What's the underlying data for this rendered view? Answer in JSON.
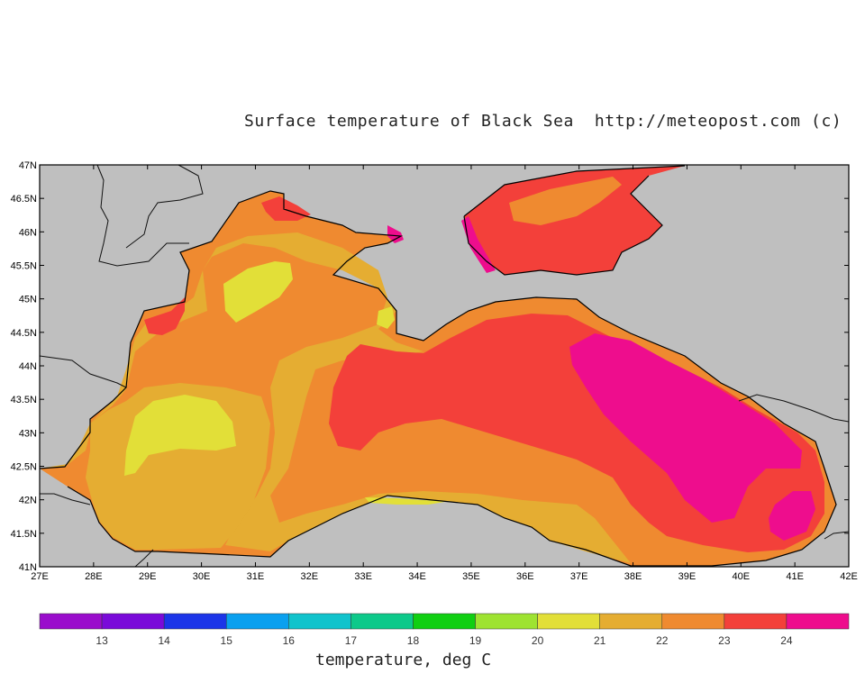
{
  "title": "Surface temperature of Black Sea  http://meteopost.com (c)",
  "colors": {
    "land": "#bfbfbf",
    "c20": "#e2df38",
    "c21": "#e5ad32",
    "c22": "#ef8a30",
    "c23": "#f3403a",
    "c24": "#ee0d8d"
  },
  "axes": {
    "x_ticks": [
      "27E",
      "28E",
      "29E",
      "30E",
      "31E",
      "32E",
      "33E",
      "34E",
      "35E",
      "36E",
      "37E",
      "38E",
      "39E",
      "40E",
      "41E",
      "42E"
    ],
    "y_ticks": [
      "47N",
      "46.5N",
      "46N",
      "45.5N",
      "45N",
      "44.5N",
      "44N",
      "43.5N",
      "43N",
      "42.5N",
      "42N",
      "41.5N",
      "41N"
    ]
  },
  "colorbar": {
    "title": "temperature, deg C",
    "labels": [
      "13",
      "14",
      "15",
      "16",
      "17",
      "18",
      "19",
      "20",
      "21",
      "22",
      "23",
      "24"
    ],
    "colors": [
      "#9a0dcc",
      "#7a0ad9",
      "#1c35e8",
      "#0aa0ef",
      "#11c3cc",
      "#0dc98a",
      "#10cf12",
      "#9ee331",
      "#e2df38",
      "#e5ad32",
      "#ef8a30",
      "#f3403a",
      "#ee0d8d"
    ]
  }
}
